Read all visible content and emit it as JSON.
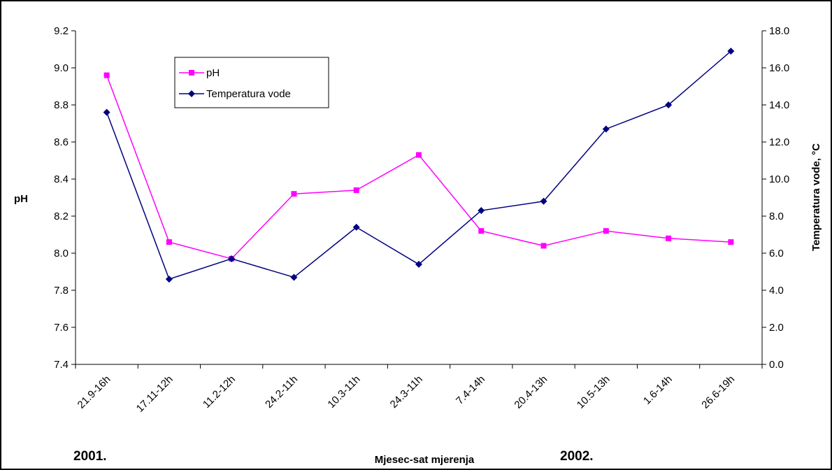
{
  "chart_data": {
    "type": "line",
    "categories": [
      "21.9-16h",
      "17.11-12h",
      "11.2-12h",
      "24.2-11h",
      "10.3-11h",
      "24.3-11h",
      "7.4-14h",
      "20.4-13h",
      "10.5-13h",
      "1.6-14h",
      "26.6-19h"
    ],
    "series": [
      {
        "name": "pH",
        "axis": "left",
        "color": "#ff00ff",
        "marker": "square",
        "values": [
          8.96,
          8.06,
          7.97,
          8.32,
          8.34,
          8.53,
          8.12,
          8.04,
          8.12,
          8.08,
          8.06
        ]
      },
      {
        "name": "Temperatura vode",
        "axis": "right",
        "color": "#000080",
        "marker": "diamond",
        "values": [
          13.6,
          4.6,
          5.7,
          4.7,
          7.4,
          5.4,
          8.3,
          8.8,
          12.7,
          14.0,
          16.9
        ]
      }
    ],
    "y_left": {
      "label": "pH",
      "ylim": [
        7.4,
        9.2
      ],
      "ticks": [
        "7.4",
        "7.6",
        "7.8",
        "8.0",
        "8.2",
        "8.4",
        "8.6",
        "8.8",
        "9.0",
        "9.2"
      ]
    },
    "y_right": {
      "label": "Temperatura vode, °C",
      "ylim": [
        0,
        18
      ],
      "ticks": [
        "0.0",
        "2.0",
        "4.0",
        "6.0",
        "8.0",
        "10.0",
        "12.0",
        "14.0",
        "16.0",
        "18.0"
      ]
    },
    "xlabel": "Mjesec-sat mjerenja",
    "annotations": [
      "2001.",
      "2002."
    ],
    "grid": false,
    "legend_position": "top-left"
  }
}
